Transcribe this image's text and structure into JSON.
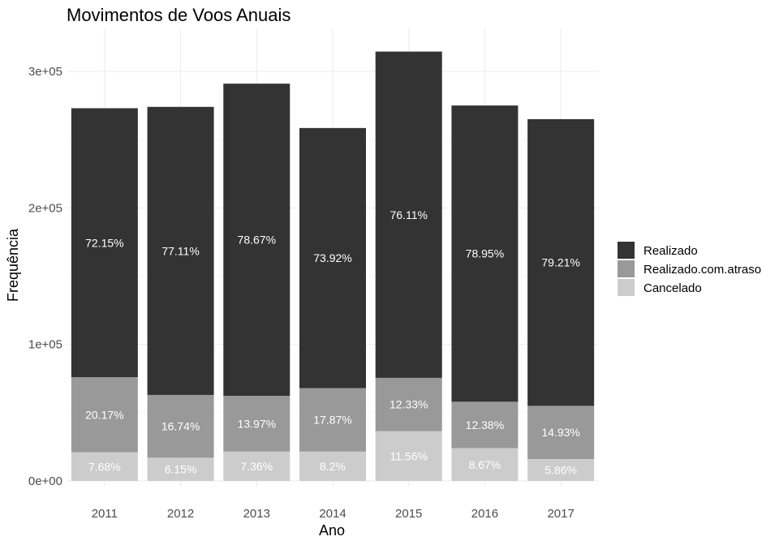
{
  "chart_data": {
    "type": "bar",
    "stacked": true,
    "title": "Movimentos de Voos Anuais",
    "xlabel": "Ano",
    "ylabel": "Frequência",
    "ylim": [
      0,
      330000
    ],
    "yticks": [
      0,
      100000,
      200000,
      300000
    ],
    "ytick_labels": [
      "0e+00",
      "1e+05",
      "2e+05",
      "3e+05"
    ],
    "grid": true,
    "legend_position": "right",
    "categories": [
      "2011",
      "2012",
      "2013",
      "2014",
      "2015",
      "2016",
      "2017"
    ],
    "series": [
      {
        "name": "Cancelado",
        "color": "#cccccc",
        "values": [
          21000,
          17000,
          21500,
          21500,
          36500,
          24000,
          16000
        ],
        "labels": [
          "7.68%",
          "6.15%",
          "7.36%",
          "8.2%",
          "11.56%",
          "8.67%",
          "5.86%"
        ]
      },
      {
        "name": "Realizado.com.atraso",
        "color": "#999999",
        "values": [
          55000,
          46000,
          40800,
          46500,
          39000,
          34000,
          39000
        ],
        "labels": [
          "20.17%",
          "16.74%",
          "13.97%",
          "17.87%",
          "12.33%",
          "12.38%",
          "14.93%"
        ]
      },
      {
        "name": "Realizado",
        "color": "#333333",
        "values": [
          197000,
          211000,
          228700,
          190500,
          239000,
          217000,
          210000
        ],
        "labels": [
          "72.15%",
          "77.11%",
          "78.67%",
          "73.92%",
          "76.11%",
          "78.95%",
          "79.21%"
        ]
      }
    ],
    "legend_order": [
      "Realizado",
      "Realizado.com.atraso",
      "Cancelado"
    ]
  }
}
